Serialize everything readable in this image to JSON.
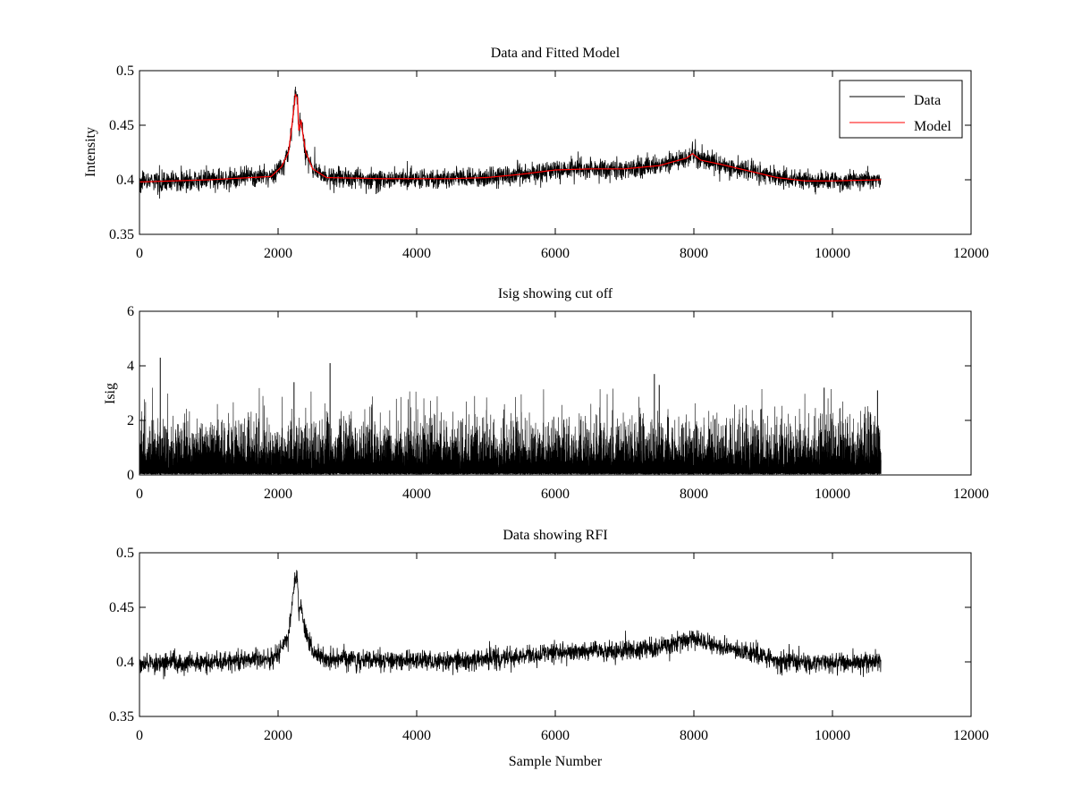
{
  "chart_data": [
    {
      "type": "line",
      "title": "Data and Fitted Model",
      "xlabel": "",
      "ylabel": "Intensity",
      "xlim": [
        0,
        12000
      ],
      "ylim": [
        0.35,
        0.5
      ],
      "xticks": [
        0,
        2000,
        4000,
        6000,
        8000,
        10000,
        12000
      ],
      "xtick_labels": [
        "0",
        "2000",
        "4000",
        "6000",
        "8000",
        "10000",
        "12000"
      ],
      "yticks": [
        0.35,
        0.4,
        0.45,
        0.5
      ],
      "ytick_labels": [
        "0.35",
        "0.4",
        "0.45",
        "0.5"
      ],
      "grid": false,
      "legend": {
        "placement": "top-right",
        "entries": [
          "Data",
          "Model"
        ]
      },
      "series": [
        {
          "name": "Data",
          "color": "#000000",
          "kind": "noisy",
          "noise": 0.0045,
          "x": [
            0,
            1000,
            1900,
            2050,
            2150,
            2200,
            2250,
            2280,
            2300,
            2330,
            2350,
            2400,
            2500,
            2700,
            3500,
            4500,
            5000,
            5500,
            6000,
            6500,
            7000,
            7500,
            7900,
            7980,
            8100,
            8400,
            8800,
            9200,
            9600,
            10000,
            10700
          ],
          "y": [
            0.398,
            0.4,
            0.403,
            0.412,
            0.425,
            0.45,
            0.478,
            0.475,
            0.445,
            0.455,
            0.445,
            0.425,
            0.41,
            0.402,
            0.401,
            0.401,
            0.402,
            0.405,
            0.409,
            0.41,
            0.41,
            0.413,
            0.42,
            0.424,
            0.418,
            0.414,
            0.408,
            0.402,
            0.399,
            0.399,
            0.4
          ]
        },
        {
          "name": "Model",
          "color": "#ff0000",
          "kind": "smooth",
          "x": [
            0,
            1000,
            1900,
            2050,
            2150,
            2200,
            2250,
            2280,
            2300,
            2330,
            2350,
            2400,
            2500,
            2700,
            3500,
            4500,
            5000,
            5500,
            6000,
            6500,
            7000,
            7500,
            7900,
            7980,
            8100,
            8400,
            8800,
            9200,
            9600,
            10000,
            10700
          ],
          "y": [
            0.398,
            0.4,
            0.403,
            0.412,
            0.425,
            0.45,
            0.478,
            0.475,
            0.445,
            0.455,
            0.445,
            0.425,
            0.41,
            0.402,
            0.401,
            0.401,
            0.402,
            0.405,
            0.409,
            0.41,
            0.41,
            0.413,
            0.42,
            0.424,
            0.418,
            0.414,
            0.408,
            0.402,
            0.399,
            0.399,
            0.4
          ]
        }
      ]
    },
    {
      "type": "line",
      "title": "Isig showing cut off",
      "xlabel": "",
      "ylabel": "Isig",
      "xlim": [
        0,
        12000
      ],
      "ylim": [
        0,
        6
      ],
      "xticks": [
        0,
        2000,
        4000,
        6000,
        8000,
        10000,
        12000
      ],
      "xtick_labels": [
        "0",
        "2000",
        "4000",
        "6000",
        "8000",
        "10000",
        "12000"
      ],
      "yticks": [
        0,
        2,
        4,
        6
      ],
      "ytick_labels": [
        "0",
        "2",
        "4",
        "6"
      ],
      "grid": false,
      "series": [
        {
          "color": "#000000",
          "kind": "spiky",
          "x_range": [
            0,
            10700
          ],
          "y_typical_max": 2.0,
          "y_max": 4.3,
          "peaks": [
            [
              300,
              4.3
            ],
            [
              2750,
              4.1
            ],
            [
              7430,
              3.7
            ],
            [
              2230,
              3.4
            ],
            [
              7500,
              3.3
            ],
            [
              9880,
              3.2
            ],
            [
              10650,
              3.1
            ]
          ]
        }
      ]
    },
    {
      "type": "line",
      "title": "Data showing RFI",
      "xlabel": "Sample Number",
      "ylabel": "",
      "xlim": [
        0,
        12000
      ],
      "ylim": [
        0.35,
        0.5
      ],
      "xticks": [
        0,
        2000,
        4000,
        6000,
        8000,
        10000,
        12000
      ],
      "xtick_labels": [
        "0",
        "2000",
        "4000",
        "6000",
        "8000",
        "10000",
        "12000"
      ],
      "yticks": [
        0.35,
        0.4,
        0.45,
        0.5
      ],
      "ytick_labels": [
        "0.35",
        "0.4",
        "0.45",
        "0.5"
      ],
      "grid": false,
      "series": [
        {
          "color": "#000000",
          "kind": "noisy",
          "noise": 0.0045,
          "x": [
            0,
            1000,
            1900,
            2050,
            2150,
            2200,
            2250,
            2280,
            2300,
            2330,
            2350,
            2400,
            2500,
            2700,
            3500,
            4500,
            5000,
            5500,
            6000,
            6500,
            7000,
            7500,
            7900,
            7980,
            8100,
            8400,
            8800,
            9200,
            9600,
            10000,
            10700
          ],
          "y": [
            0.398,
            0.4,
            0.403,
            0.412,
            0.425,
            0.45,
            0.478,
            0.475,
            0.445,
            0.455,
            0.445,
            0.425,
            0.41,
            0.402,
            0.401,
            0.401,
            0.402,
            0.405,
            0.409,
            0.41,
            0.41,
            0.413,
            0.42,
            0.424,
            0.418,
            0.414,
            0.408,
            0.402,
            0.399,
            0.399,
            0.4
          ]
        }
      ]
    }
  ]
}
